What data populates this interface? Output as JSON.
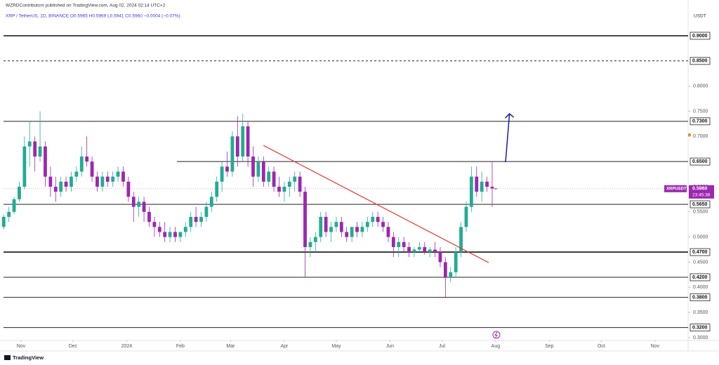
{
  "chart_data": {
    "type": "candlestick",
    "header": "WZRDContributors published on TradingView.com, Aug 02, 2024 02:14 UTC+2",
    "legend_text": "XRP / TetherUS, 1D, BINANCE  O0.5965 H0.5969 L0.5941 C0.5960 −0.0004 (−0.07%)",
    "axis_unit": "USDT",
    "symbol": "XRPUSDT",
    "countdown": "23:45:38",
    "footer": "TradingView",
    "up_color": "#22ab94",
    "down_color": "#9c27b0",
    "xlim": [
      -10.1,
      385.1
    ],
    "xticks": [
      {
        "value": 0,
        "label": "Nov"
      },
      {
        "value": 30,
        "label": "Dec"
      },
      {
        "value": 61,
        "label": "2024"
      },
      {
        "value": 92,
        "label": "Feb"
      },
      {
        "value": 121,
        "label": "Mar"
      },
      {
        "value": 152,
        "label": "Apr"
      },
      {
        "value": 182,
        "label": "May"
      },
      {
        "value": 213,
        "label": "Jun"
      },
      {
        "value": 243,
        "label": "Jul"
      },
      {
        "value": 274,
        "label": "Aug"
      },
      {
        "value": 305,
        "label": "Sep"
      },
      {
        "value": 335,
        "label": "Oct"
      },
      {
        "value": 366,
        "label": "Nov"
      }
    ],
    "ylim": [
      0.2944,
      0.9502
    ],
    "yticks": [
      {
        "value": 0.3,
        "label": "0.3000"
      },
      {
        "value": 0.35,
        "label": "0.3500"
      },
      {
        "value": 0.4,
        "label": "0.4000"
      },
      {
        "value": 0.45,
        "label": "0.4500"
      },
      {
        "value": 0.5,
        "label": "0.5000"
      },
      {
        "value": 0.55,
        "label": "0.5500"
      },
      {
        "value": 0.6,
        "label": "0.6000"
      },
      {
        "value": 0.7,
        "label": "0.7000"
      },
      {
        "value": 0.75,
        "label": "0.7500"
      },
      {
        "value": 0.8,
        "label": "0.8000"
      }
    ],
    "levels": [
      {
        "value": 0.9,
        "label": "0.9000",
        "width": 1.6,
        "dash": false,
        "start": -10.1
      },
      {
        "value": 0.85,
        "label": "0.8500",
        "width": 1,
        "dash": true,
        "start": -10.1
      },
      {
        "value": 0.73,
        "label": "0.7300",
        "width": 1,
        "dash": false,
        "start": -10.1
      },
      {
        "value": 0.65,
        "label": "0.6500",
        "width": 1,
        "dash": false,
        "start": 90
      },
      {
        "value": 0.565,
        "label": "0.5650",
        "width": 1,
        "dash": false,
        "start": -10.1
      },
      {
        "value": 0.47,
        "label": "0.4700",
        "width": 1.8,
        "dash": false,
        "start": -10.1
      },
      {
        "value": 0.42,
        "label": "0.4200",
        "width": 1,
        "dash": false,
        "start": -10.1
      },
      {
        "value": 0.38,
        "label": "0.3800",
        "width": 1,
        "dash": false,
        "start": -10.1
      },
      {
        "value": 0.32,
        "label": "0.3200",
        "width": 1,
        "dash": false,
        "start": -10.1
      }
    ],
    "last_price": {
      "value": 0.596,
      "label": "0.5960"
    },
    "trendline": {
      "x": [
        140,
        270
      ],
      "y": [
        0.682,
        0.449
      ],
      "color": "#e53935"
    },
    "arrow": {
      "x": [
        279.7,
        282
      ],
      "y": [
        0.6488,
        0.745
      ],
      "color": "#1a1aa6"
    },
    "ohlc": [
      [
        -10,
        0.52,
        0.545,
        0.515,
        0.54
      ],
      [
        -7,
        0.54,
        0.56,
        0.53,
        0.55
      ],
      [
        -4,
        0.55,
        0.58,
        0.545,
        0.575
      ],
      [
        -1,
        0.575,
        0.61,
        0.57,
        0.6
      ],
      [
        2,
        0.6,
        0.7,
        0.595,
        0.68
      ],
      [
        5,
        0.68,
        0.73,
        0.64,
        0.69
      ],
      [
        8,
        0.69,
        0.7,
        0.63,
        0.66
      ],
      [
        11,
        0.66,
        0.75,
        0.65,
        0.68
      ],
      [
        14,
        0.68,
        0.69,
        0.6,
        0.62
      ],
      [
        17,
        0.62,
        0.64,
        0.58,
        0.6
      ],
      [
        20,
        0.6,
        0.62,
        0.57,
        0.59
      ],
      [
        23,
        0.59,
        0.62,
        0.58,
        0.61
      ],
      [
        26,
        0.61,
        0.62,
        0.59,
        0.6
      ],
      [
        29,
        0.6,
        0.63,
        0.59,
        0.62
      ],
      [
        32,
        0.62,
        0.64,
        0.61,
        0.63
      ],
      [
        35,
        0.63,
        0.68,
        0.62,
        0.66
      ],
      [
        38,
        0.66,
        0.7,
        0.64,
        0.65
      ],
      [
        41,
        0.65,
        0.66,
        0.61,
        0.62
      ],
      [
        44,
        0.62,
        0.63,
        0.59,
        0.6
      ],
      [
        47,
        0.6,
        0.63,
        0.59,
        0.62
      ],
      [
        50,
        0.62,
        0.63,
        0.6,
        0.61
      ],
      [
        53,
        0.61,
        0.63,
        0.6,
        0.62
      ],
      [
        56,
        0.62,
        0.64,
        0.61,
        0.63
      ],
      [
        59,
        0.63,
        0.64,
        0.6,
        0.61
      ],
      [
        62,
        0.61,
        0.62,
        0.57,
        0.58
      ],
      [
        65,
        0.58,
        0.59,
        0.53,
        0.56
      ],
      [
        68,
        0.56,
        0.58,
        0.54,
        0.57
      ],
      [
        71,
        0.57,
        0.58,
        0.53,
        0.55
      ],
      [
        74,
        0.55,
        0.56,
        0.52,
        0.53
      ],
      [
        77,
        0.53,
        0.54,
        0.5,
        0.52
      ],
      [
        80,
        0.52,
        0.53,
        0.5,
        0.51
      ],
      [
        83,
        0.51,
        0.53,
        0.49,
        0.5
      ],
      [
        86,
        0.5,
        0.52,
        0.49,
        0.51
      ],
      [
        89,
        0.51,
        0.52,
        0.49,
        0.5
      ],
      [
        92,
        0.5,
        0.51,
        0.49,
        0.51
      ],
      [
        95,
        0.51,
        0.53,
        0.5,
        0.52
      ],
      [
        98,
        0.52,
        0.55,
        0.51,
        0.54
      ],
      [
        101,
        0.54,
        0.56,
        0.52,
        0.53
      ],
      [
        104,
        0.53,
        0.55,
        0.52,
        0.54
      ],
      [
        107,
        0.54,
        0.57,
        0.53,
        0.56
      ],
      [
        110,
        0.56,
        0.59,
        0.55,
        0.58
      ],
      [
        113,
        0.58,
        0.62,
        0.57,
        0.61
      ],
      [
        116,
        0.61,
        0.65,
        0.59,
        0.64
      ],
      [
        119,
        0.64,
        0.67,
        0.62,
        0.63
      ],
      [
        122,
        0.63,
        0.71,
        0.62,
        0.7
      ],
      [
        125,
        0.7,
        0.74,
        0.64,
        0.66
      ],
      [
        128,
        0.66,
        0.745,
        0.65,
        0.72
      ],
      [
        131,
        0.72,
        0.73,
        0.64,
        0.66
      ],
      [
        134,
        0.66,
        0.68,
        0.6,
        0.62
      ],
      [
        137,
        0.62,
        0.66,
        0.61,
        0.65
      ],
      [
        140,
        0.65,
        0.66,
        0.6,
        0.61
      ],
      [
        143,
        0.61,
        0.64,
        0.6,
        0.63
      ],
      [
        146,
        0.63,
        0.64,
        0.59,
        0.6
      ],
      [
        149,
        0.6,
        0.62,
        0.58,
        0.59
      ],
      [
        152,
        0.59,
        0.61,
        0.57,
        0.6
      ],
      [
        155,
        0.6,
        0.62,
        0.58,
        0.61
      ],
      [
        158,
        0.61,
        0.63,
        0.59,
        0.62
      ],
      [
        161,
        0.62,
        0.63,
        0.58,
        0.59
      ],
      [
        164,
        0.59,
        0.6,
        0.42,
        0.48
      ],
      [
        167,
        0.48,
        0.5,
        0.46,
        0.49
      ],
      [
        170,
        0.49,
        0.51,
        0.47,
        0.5
      ],
      [
        173,
        0.5,
        0.55,
        0.49,
        0.54
      ],
      [
        176,
        0.54,
        0.55,
        0.5,
        0.51
      ],
      [
        179,
        0.51,
        0.53,
        0.49,
        0.52
      ],
      [
        182,
        0.52,
        0.54,
        0.51,
        0.53
      ],
      [
        185,
        0.53,
        0.54,
        0.5,
        0.51
      ],
      [
        188,
        0.51,
        0.52,
        0.49,
        0.5
      ],
      [
        191,
        0.5,
        0.52,
        0.49,
        0.52
      ],
      [
        194,
        0.52,
        0.53,
        0.5,
        0.51
      ],
      [
        197,
        0.51,
        0.53,
        0.5,
        0.52
      ],
      [
        200,
        0.52,
        0.54,
        0.51,
        0.53
      ],
      [
        203,
        0.53,
        0.55,
        0.52,
        0.54
      ],
      [
        206,
        0.54,
        0.55,
        0.52,
        0.53
      ],
      [
        209,
        0.53,
        0.54,
        0.51,
        0.52
      ],
      [
        212,
        0.52,
        0.53,
        0.49,
        0.5
      ],
      [
        215,
        0.5,
        0.51,
        0.46,
        0.48
      ],
      [
        218,
        0.48,
        0.5,
        0.46,
        0.49
      ],
      [
        221,
        0.49,
        0.5,
        0.47,
        0.48
      ],
      [
        224,
        0.48,
        0.49,
        0.46,
        0.47
      ],
      [
        227,
        0.47,
        0.48,
        0.46,
        0.475
      ],
      [
        230,
        0.475,
        0.49,
        0.47,
        0.48
      ],
      [
        233,
        0.48,
        0.49,
        0.465,
        0.47
      ],
      [
        236,
        0.47,
        0.48,
        0.46,
        0.475
      ],
      [
        239,
        0.475,
        0.49,
        0.46,
        0.47
      ],
      [
        242,
        0.47,
        0.48,
        0.44,
        0.45
      ],
      [
        245,
        0.45,
        0.46,
        0.38,
        0.42
      ],
      [
        248,
        0.42,
        0.44,
        0.41,
        0.43
      ],
      [
        251,
        0.43,
        0.48,
        0.42,
        0.47
      ],
      [
        254,
        0.47,
        0.53,
        0.46,
        0.52
      ],
      [
        257,
        0.52,
        0.57,
        0.51,
        0.56
      ],
      [
        260,
        0.56,
        0.64,
        0.55,
        0.62
      ],
      [
        263,
        0.62,
        0.64,
        0.58,
        0.59
      ],
      [
        266,
        0.59,
        0.63,
        0.57,
        0.61
      ],
      [
        269,
        0.61,
        0.62,
        0.59,
        0.6
      ],
      [
        272,
        0.6,
        0.65,
        0.56,
        0.5965
      ],
      [
        274,
        0.5965,
        0.5969,
        0.5941,
        0.596
      ]
    ]
  }
}
